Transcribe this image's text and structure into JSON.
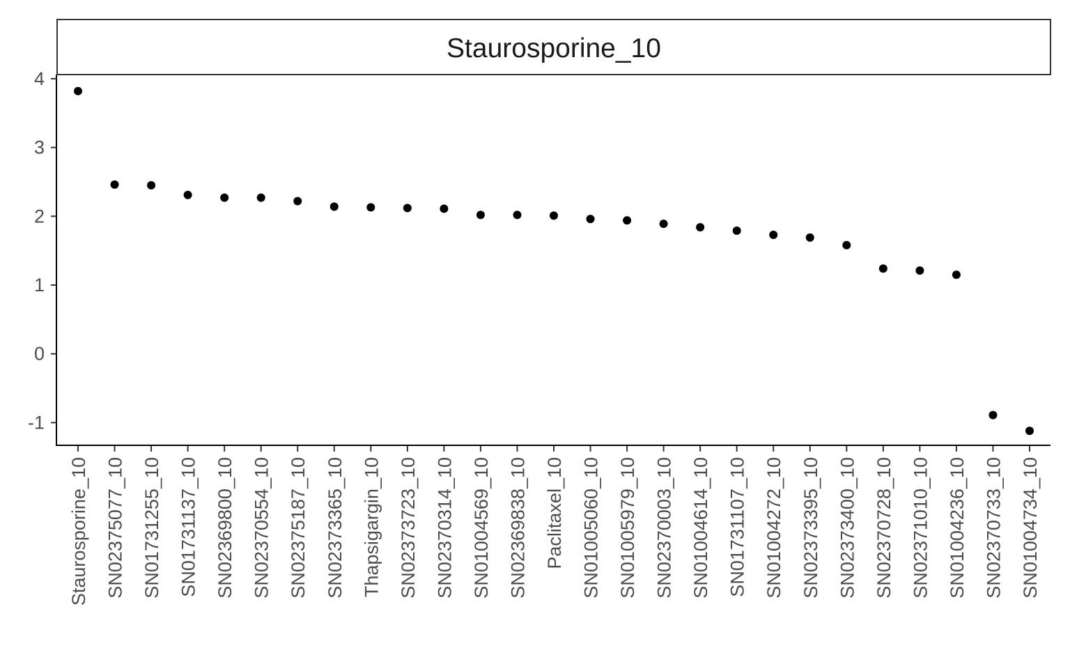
{
  "chart_data": {
    "type": "scatter",
    "facet_title": "Staurosporine_10",
    "categories": [
      "Staurosporine_10",
      "SN02375077_10",
      "SN01731255_10",
      "SN01731137_10",
      "SN02369800_10",
      "SN02370554_10",
      "SN02375187_10",
      "SN02373365_10",
      "Thapsigargin_10",
      "SN02373723_10",
      "SN02370314_10",
      "SN01004569_10",
      "SN02369838_10",
      "Paclitaxel_10",
      "SN01005060_10",
      "SN01005979_10",
      "SN02370003_10",
      "SN01004614_10",
      "SN01731107_10",
      "SN01004272_10",
      "SN02373395_10",
      "SN02373400_10",
      "SN02370728_10",
      "SN02371010_10",
      "SN01004236_10",
      "SN02370733_10",
      "SN01004734_10"
    ],
    "values": [
      3.82,
      2.46,
      2.45,
      2.31,
      2.27,
      2.27,
      2.22,
      2.14,
      2.13,
      2.12,
      2.11,
      2.02,
      2.02,
      2.01,
      1.96,
      1.94,
      1.89,
      1.84,
      1.79,
      1.73,
      1.69,
      1.58,
      1.24,
      1.21,
      1.15,
      -0.89,
      -1.12
    ],
    "y_ticks": [
      "-1",
      "0",
      "1",
      "2",
      "3",
      "4"
    ],
    "ylim": [
      -1.33,
      4.06
    ],
    "xlabel": "",
    "ylabel": "",
    "grid": false,
    "point_color": "#000000"
  }
}
